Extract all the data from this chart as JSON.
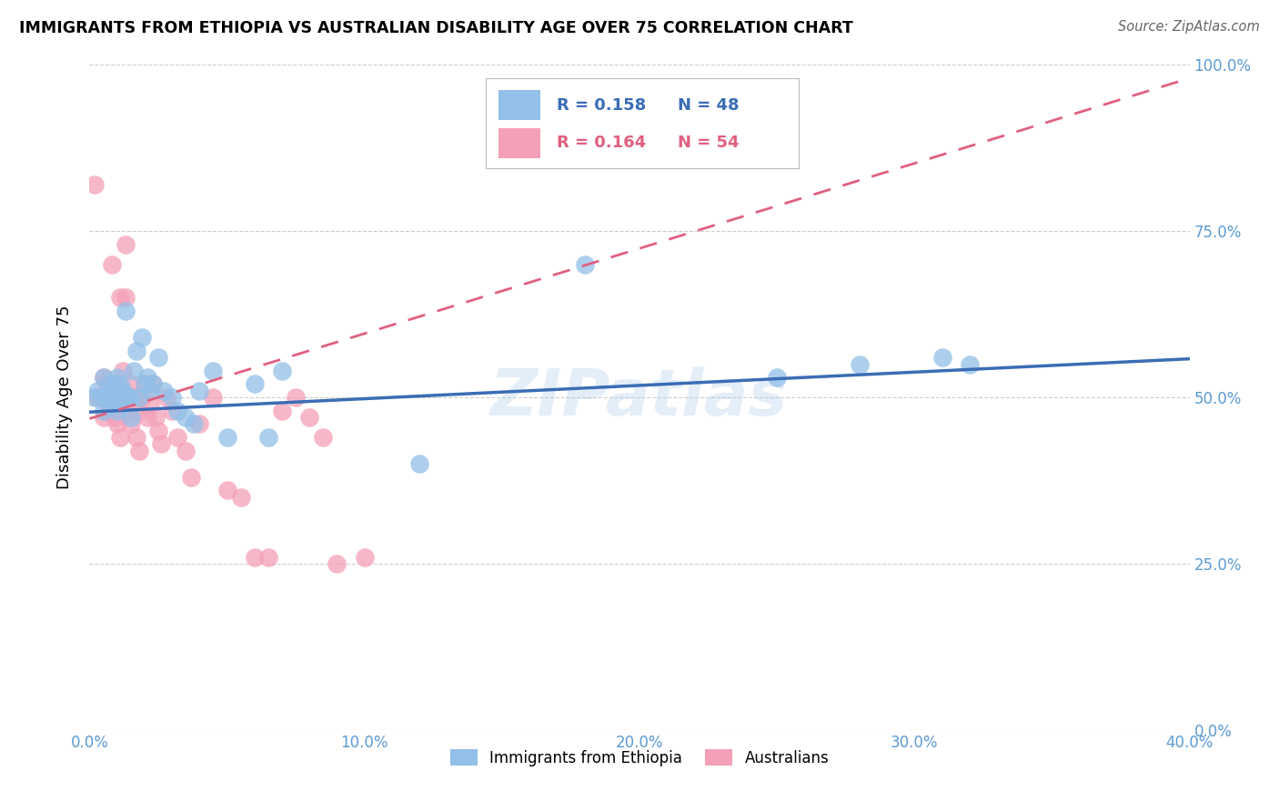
{
  "title": "IMMIGRANTS FROM ETHIOPIA VS AUSTRALIAN DISABILITY AGE OVER 75 CORRELATION CHART",
  "source": "Source: ZipAtlas.com",
  "ylabel": "Disability Age Over 75",
  "xlabel_ticks": [
    "0.0%",
    "10.0%",
    "20.0%",
    "30.0%",
    "40.0%"
  ],
  "xlabel_vals": [
    0.0,
    0.1,
    0.2,
    0.3,
    0.4
  ],
  "ylabel_ticks": [
    "0.0%",
    "25.0%",
    "50.0%",
    "75.0%",
    "100.0%"
  ],
  "ylabel_vals": [
    0.0,
    0.25,
    0.5,
    0.75,
    1.0
  ],
  "xlim": [
    0.0,
    0.4
  ],
  "ylim": [
    0.0,
    1.0
  ],
  "r_blue": 0.158,
  "n_blue": 48,
  "r_pink": 0.164,
  "n_pink": 54,
  "blue_color": "#92C0E8",
  "pink_color": "#F4A0B8",
  "blue_line_color": "#3B6DB5",
  "pink_line_color": "#E06080",
  "watermark": "ZIPatlas",
  "legend_labels": [
    "Immigrants from Ethiopia",
    "Australians"
  ],
  "blue_x": [
    0.002,
    0.003,
    0.004,
    0.005,
    0.005,
    0.006,
    0.007,
    0.007,
    0.008,
    0.008,
    0.009,
    0.009,
    0.01,
    0.01,
    0.011,
    0.011,
    0.012,
    0.012,
    0.013,
    0.014,
    0.015,
    0.015,
    0.016,
    0.017,
    0.018,
    0.019,
    0.02,
    0.021,
    0.022,
    0.023,
    0.025,
    0.027,
    0.03,
    0.032,
    0.035,
    0.038,
    0.04,
    0.045,
    0.05,
    0.06,
    0.065,
    0.07,
    0.12,
    0.18,
    0.25,
    0.28,
    0.31,
    0.32
  ],
  "blue_y": [
    0.5,
    0.51,
    0.5,
    0.48,
    0.53,
    0.5,
    0.49,
    0.52,
    0.51,
    0.5,
    0.49,
    0.52,
    0.48,
    0.53,
    0.5,
    0.52,
    0.51,
    0.5,
    0.63,
    0.5,
    0.5,
    0.47,
    0.54,
    0.57,
    0.5,
    0.59,
    0.52,
    0.53,
    0.51,
    0.52,
    0.56,
    0.51,
    0.5,
    0.48,
    0.47,
    0.46,
    0.51,
    0.54,
    0.44,
    0.52,
    0.44,
    0.54,
    0.4,
    0.7,
    0.53,
    0.55,
    0.56,
    0.55
  ],
  "pink_x": [
    0.002,
    0.003,
    0.004,
    0.005,
    0.005,
    0.006,
    0.006,
    0.007,
    0.007,
    0.008,
    0.008,
    0.009,
    0.009,
    0.01,
    0.01,
    0.011,
    0.011,
    0.012,
    0.012,
    0.013,
    0.013,
    0.014,
    0.014,
    0.015,
    0.015,
    0.016,
    0.017,
    0.018,
    0.018,
    0.019,
    0.02,
    0.021,
    0.022,
    0.023,
    0.024,
    0.025,
    0.026,
    0.028,
    0.03,
    0.032,
    0.035,
    0.037,
    0.04,
    0.045,
    0.05,
    0.055,
    0.06,
    0.065,
    0.07,
    0.075,
    0.08,
    0.085,
    0.09,
    0.1
  ],
  "pink_y": [
    0.82,
    0.5,
    0.5,
    0.47,
    0.53,
    0.5,
    0.52,
    0.48,
    0.51,
    0.7,
    0.5,
    0.47,
    0.52,
    0.46,
    0.5,
    0.44,
    0.65,
    0.5,
    0.54,
    0.73,
    0.65,
    0.5,
    0.48,
    0.52,
    0.46,
    0.5,
    0.44,
    0.42,
    0.48,
    0.5,
    0.52,
    0.47,
    0.49,
    0.52,
    0.47,
    0.45,
    0.43,
    0.5,
    0.48,
    0.44,
    0.42,
    0.38,
    0.46,
    0.5,
    0.36,
    0.35,
    0.26,
    0.26,
    0.48,
    0.5,
    0.47,
    0.44,
    0.25,
    0.26
  ],
  "blue_line_x0": 0.0,
  "blue_line_x1": 0.4,
  "blue_line_y0": 0.478,
  "blue_line_y1": 0.558,
  "pink_line_x0": 0.0,
  "pink_line_x1": 0.4,
  "pink_line_y0": 0.468,
  "pink_line_y1": 0.98
}
